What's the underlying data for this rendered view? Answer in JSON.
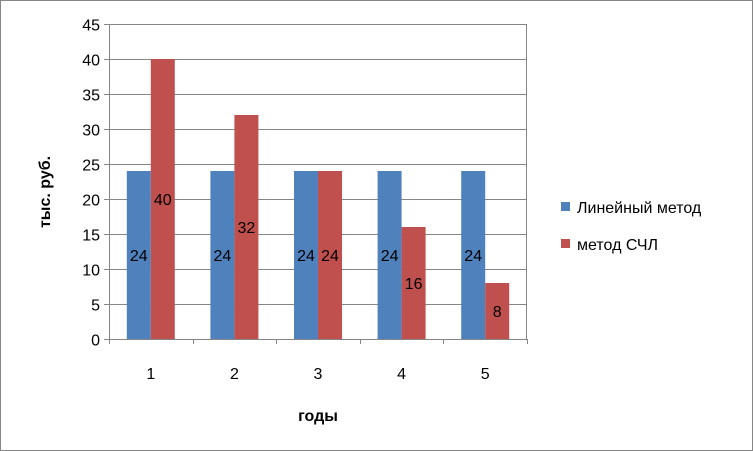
{
  "chart_data": {
    "type": "bar",
    "categories": [
      "1",
      "2",
      "3",
      "4",
      "5"
    ],
    "series": [
      {
        "name": "Линейный метод",
        "values": [
          24,
          24,
          24,
          24,
          24
        ],
        "color": "#4F81BD"
      },
      {
        "name": "метод СЧЛ",
        "values": [
          40,
          32,
          24,
          16,
          8
        ],
        "color": "#C0504D"
      }
    ],
    "xlabel": "годы",
    "ylabel": "тыс. руб.",
    "ylim": [
      0,
      45
    ],
    "yticks": [
      "0",
      "5",
      "10",
      "15",
      "20",
      "25",
      "30",
      "35",
      "40",
      "45"
    ],
    "grid": true,
    "legend": "right",
    "data_labels": true
  }
}
